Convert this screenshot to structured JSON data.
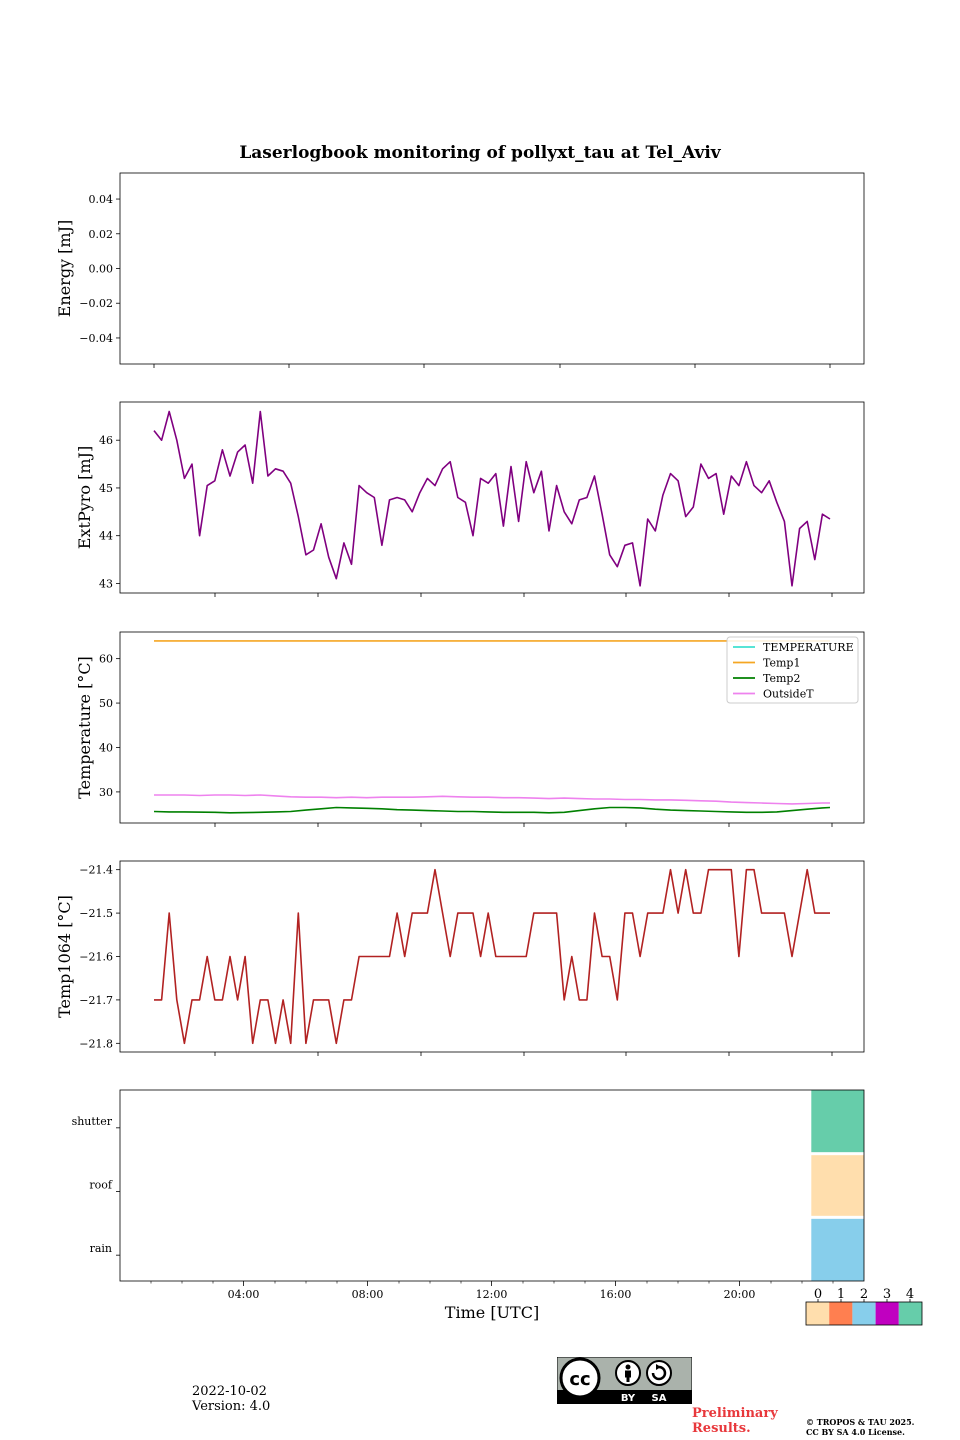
{
  "title": "Laserlogbook monitoring of pollyxt_tau at Tel_Aviv",
  "chart_data": [
    {
      "type": "line",
      "ylabel": "Energy [mJ]",
      "ylim": [
        -0.055,
        0.055
      ],
      "yticks": [
        -0.04,
        -0.02,
        0.0,
        0.02,
        0.04
      ],
      "ytick_labels": [
        "−0.04",
        "−0.02",
        "0.00",
        "0.02",
        "0.04"
      ],
      "xlim": [
        0,
        24
      ],
      "series": []
    },
    {
      "type": "line",
      "ylabel": "ExtPyro [mJ]",
      "ylim": [
        42.8,
        46.8
      ],
      "yticks": [
        43,
        44,
        45,
        46
      ],
      "ytick_labels": [
        "43",
        "44",
        "45",
        "46"
      ],
      "xlim": [
        0,
        24
      ],
      "series": [
        {
          "color": "#800080",
          "x": [
            1.1,
            1.35,
            1.6,
            1.85,
            2.1,
            2.35,
            2.6,
            2.85,
            3.1,
            3.35,
            3.6,
            3.85,
            4.1,
            4.35,
            4.6,
            4.85,
            5.1,
            5.35,
            5.6,
            5.85,
            6.1,
            6.35,
            6.6,
            6.85,
            7.1,
            7.35,
            7.6,
            7.85,
            8.1,
            8.35,
            8.6,
            8.85,
            9.1,
            9.35,
            9.6,
            9.85,
            10.1,
            10.35,
            10.6,
            10.85,
            11.1,
            11.35,
            11.6,
            11.85,
            12.1,
            12.35,
            12.6,
            12.85,
            13.1,
            13.35,
            13.6,
            13.85,
            14.1,
            14.35,
            14.6,
            14.85,
            15.1,
            15.35,
            15.6,
            15.85,
            16.1,
            16.35,
            16.6,
            16.85,
            17.1,
            17.35,
            17.6,
            17.85,
            18.1,
            18.35,
            18.6,
            18.85,
            19.1,
            19.35,
            19.6,
            19.85,
            20.1,
            20.35,
            20.6,
            20.85,
            21.1,
            21.35,
            21.6,
            21.85,
            22.1,
            22.35,
            22.6,
            22.85,
            23.1,
            23.35
          ],
          "y": [
            46.2,
            46.0,
            46.6,
            46.0,
            45.2,
            45.5,
            44.0,
            45.05,
            45.15,
            45.8,
            45.25,
            45.75,
            45.9,
            45.1,
            46.6,
            45.25,
            45.4,
            45.35,
            45.1,
            44.4,
            43.6,
            43.7,
            44.25,
            43.55,
            43.1,
            43.85,
            43.4,
            45.05,
            44.9,
            44.8,
            43.8,
            44.75,
            44.8,
            44.75,
            44.5,
            44.9,
            45.2,
            45.05,
            45.4,
            45.55,
            44.8,
            44.7,
            44.0,
            45.2,
            45.1,
            45.3,
            44.2,
            45.45,
            44.3,
            45.55,
            44.9,
            45.35,
            44.1,
            45.05,
            44.5,
            44.25,
            44.75,
            44.8,
            45.25,
            44.45,
            43.6,
            43.35,
            43.8,
            43.85,
            42.95,
            44.35,
            44.1,
            44.85,
            45.3,
            45.15,
            44.4,
            44.6,
            45.5,
            45.2,
            45.3,
            44.45,
            45.25,
            45.05,
            45.55,
            45.05,
            44.9,
            45.15,
            44.7,
            44.3,
            42.95,
            44.15,
            44.3,
            43.5,
            44.45,
            44.35
          ]
        }
      ]
    },
    {
      "type": "line",
      "ylabel": "Temperature [°C]",
      "ylim": [
        23.0,
        66.0
      ],
      "yticks": [
        30,
        40,
        50,
        60
      ],
      "ytick_labels": [
        "30",
        "40",
        "50",
        "60"
      ],
      "xlim": [
        0,
        24
      ],
      "legend": "top-right",
      "legend_entries": [
        "TEMPERATURE",
        "Temp1",
        "Temp2",
        "OutsideT"
      ],
      "series": [
        {
          "name": "TEMPERATURE",
          "color": "#40e0d0",
          "x": [],
          "y": []
        },
        {
          "name": "Temp1",
          "color": "#f5a623",
          "x": [
            1.1,
            23.35
          ],
          "y": [
            64.0,
            64.0
          ]
        },
        {
          "name": "Temp2",
          "color": "#008000",
          "x": [
            1.1,
            1.6,
            2.1,
            3.1,
            3.6,
            4.6,
            5.1,
            5.6,
            6.1,
            6.6,
            7.1,
            7.6,
            8.1,
            8.6,
            9.1,
            9.6,
            10.1,
            10.6,
            11.1,
            11.6,
            12.1,
            12.6,
            13.1,
            13.6,
            14.1,
            14.6,
            15.1,
            15.6,
            16.1,
            16.6,
            17.1,
            17.6,
            18.1,
            18.6,
            19.1,
            19.6,
            20.1,
            20.6,
            21.1,
            21.6,
            22.1,
            22.6,
            23.1,
            23.35
          ],
          "y": [
            25.6,
            25.5,
            25.5,
            25.4,
            25.3,
            25.4,
            25.5,
            25.6,
            25.9,
            26.2,
            26.5,
            26.4,
            26.3,
            26.2,
            26.0,
            25.9,
            25.8,
            25.7,
            25.6,
            25.6,
            25.5,
            25.4,
            25.4,
            25.4,
            25.3,
            25.4,
            25.8,
            26.2,
            26.5,
            26.5,
            26.4,
            26.1,
            25.9,
            25.8,
            25.7,
            25.6,
            25.5,
            25.4,
            25.4,
            25.5,
            25.8,
            26.1,
            26.4,
            26.5
          ]
        },
        {
          "name": "OutsideT",
          "color": "#ee82ee",
          "x": [
            1.1,
            1.6,
            2.1,
            2.6,
            3.1,
            3.6,
            4.1,
            4.6,
            5.1,
            5.6,
            6.1,
            6.6,
            7.1,
            7.6,
            8.1,
            8.6,
            9.1,
            9.6,
            10.1,
            10.6,
            11.1,
            11.6,
            12.1,
            12.6,
            13.1,
            13.6,
            14.1,
            14.6,
            15.1,
            15.6,
            16.1,
            16.6,
            17.1,
            17.6,
            18.1,
            18.6,
            19.1,
            19.6,
            20.1,
            20.6,
            21.1,
            21.6,
            22.1,
            22.6,
            23.1,
            23.35
          ],
          "y": [
            29.3,
            29.3,
            29.3,
            29.2,
            29.3,
            29.3,
            29.2,
            29.3,
            29.1,
            28.9,
            28.8,
            28.8,
            28.7,
            28.8,
            28.7,
            28.8,
            28.8,
            28.8,
            28.9,
            29.0,
            28.9,
            28.8,
            28.8,
            28.7,
            28.7,
            28.6,
            28.5,
            28.6,
            28.5,
            28.4,
            28.4,
            28.3,
            28.3,
            28.2,
            28.2,
            28.1,
            28.0,
            27.9,
            27.7,
            27.6,
            27.5,
            27.4,
            27.3,
            27.4,
            27.5,
            27.5
          ]
        }
      ]
    },
    {
      "type": "line",
      "ylabel": "Temp1064 [°C]",
      "ylim": [
        -21.82,
        -21.38
      ],
      "yticks": [
        -21.8,
        -21.7,
        -21.6,
        -21.5,
        -21.4
      ],
      "ytick_labels": [
        "−21.8",
        "−21.7",
        "−21.6",
        "−21.5",
        "−21.4"
      ],
      "xlim": [
        0,
        24
      ],
      "series": [
        {
          "color": "#b22222",
          "x": [
            1.1,
            1.35,
            1.6,
            1.85,
            2.1,
            2.35,
            2.6,
            2.85,
            3.1,
            3.35,
            3.6,
            3.85,
            4.1,
            4.35,
            4.6,
            4.85,
            5.1,
            5.35,
            5.6,
            5.85,
            6.1,
            6.35,
            6.6,
            6.85,
            7.1,
            7.35,
            7.6,
            7.85,
            8.1,
            8.35,
            8.6,
            8.85,
            9.1,
            9.35,
            9.6,
            9.85,
            10.1,
            10.35,
            10.6,
            10.85,
            11.1,
            11.35,
            11.6,
            11.85,
            12.1,
            12.35,
            12.6,
            12.85,
            13.1,
            13.35,
            13.6,
            13.85,
            14.1,
            14.35,
            14.6,
            14.85,
            15.1,
            15.35,
            15.6,
            15.85,
            16.1,
            16.35,
            16.6,
            16.85,
            17.1,
            17.35,
            17.6,
            17.85,
            18.1,
            18.35,
            18.6,
            18.85,
            19.1,
            19.35,
            19.6,
            19.85,
            20.1,
            20.35,
            20.6,
            20.85,
            21.1,
            21.35,
            21.6,
            21.85,
            22.1,
            22.35,
            22.6,
            22.85,
            23.1,
            23.35
          ],
          "y": [
            -21.7,
            -21.7,
            -21.5,
            -21.7,
            -21.8,
            -21.7,
            -21.7,
            -21.6,
            -21.7,
            -21.7,
            -21.6,
            -21.7,
            -21.6,
            -21.8,
            -21.7,
            -21.7,
            -21.8,
            -21.7,
            -21.8,
            -21.5,
            -21.8,
            -21.7,
            -21.7,
            -21.7,
            -21.8,
            -21.7,
            -21.7,
            -21.6,
            -21.6,
            -21.6,
            -21.6,
            -21.6,
            -21.5,
            -21.6,
            -21.5,
            -21.5,
            -21.5,
            -21.4,
            -21.5,
            -21.6,
            -21.5,
            -21.5,
            -21.5,
            -21.6,
            -21.5,
            -21.6,
            -21.6,
            -21.6,
            -21.6,
            -21.6,
            -21.5,
            -21.5,
            -21.5,
            -21.5,
            -21.7,
            -21.6,
            -21.7,
            -21.7,
            -21.5,
            -21.6,
            -21.6,
            -21.7,
            -21.5,
            -21.5,
            -21.6,
            -21.5,
            -21.5,
            -21.5,
            -21.4,
            -21.5,
            -21.4,
            -21.5,
            -21.5,
            -21.4,
            -21.4,
            -21.4,
            -21.4,
            -21.6,
            -21.4,
            -21.4,
            -21.5,
            -21.5,
            -21.5,
            -21.5,
            -21.6,
            -21.5,
            -21.4,
            -21.5,
            -21.5,
            -21.5
          ]
        }
      ]
    },
    {
      "type": "heatmap",
      "rows": [
        "rain",
        "roof",
        "shutter"
      ],
      "xlim": [
        0,
        24
      ],
      "xticks": [
        4,
        8,
        12,
        16,
        20
      ],
      "xtick_labels": [
        "04:00",
        "08:00",
        "12:00",
        "16:00",
        "20:00"
      ],
      "xlabel": "Time [UTC]",
      "blocks": [
        {
          "row": "shutter",
          "x0": 22.3,
          "x1": 24.0,
          "value": 4
        },
        {
          "row": "roof",
          "x0": 22.3,
          "x1": 24.0,
          "value": 0
        },
        {
          "row": "rain",
          "x0": 22.3,
          "x1": 24.0,
          "value": 2
        }
      ],
      "colorbar": {
        "labels": [
          "0",
          "1",
          "2",
          "3",
          "4"
        ],
        "colors": [
          "#ffdead",
          "#ff7f50",
          "#87ceeb",
          "#c000c0",
          "#66cdaa"
        ]
      }
    }
  ],
  "footer": {
    "date": "2022-10-02",
    "version": "Version: 4.0",
    "preliminary_1": "Preliminary",
    "preliminary_2": "Results.",
    "copyright_1": "© TROPOS & TAU 2025.",
    "copyright_2": "CC BY SA 4.0 License.",
    "cc_badge": {
      "by": "BY",
      "sa": "SA",
      "icon": "creative-commons-badge"
    }
  }
}
